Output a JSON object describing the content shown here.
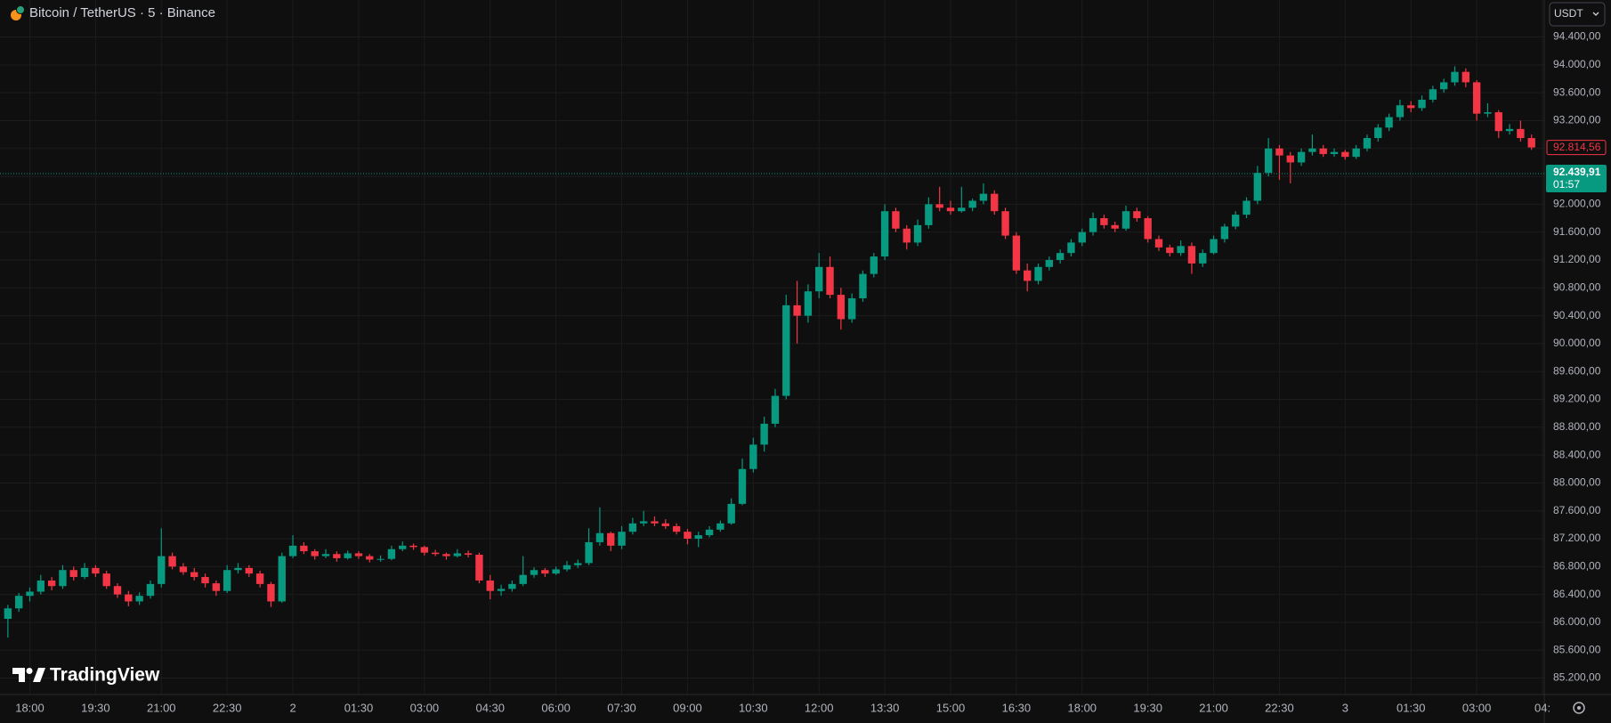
{
  "chart_data": {
    "type": "candlestick",
    "title": "Bitcoin / TetherUS · 5 · Binance",
    "currency": "USDT",
    "watermark": "TradingView",
    "up_color": "#089981",
    "down_color": "#f23645",
    "grid": true,
    "xlim": [
      -0.68,
      34.54
    ],
    "ylim": [
      84964,
      94931
    ],
    "xticks": [
      {
        "value": 0,
        "label": "18:00"
      },
      {
        "value": 1.5,
        "label": "19:30"
      },
      {
        "value": 3,
        "label": "21:00"
      },
      {
        "value": 4.5,
        "label": "22:30"
      },
      {
        "value": 6,
        "label": "2"
      },
      {
        "value": 7.5,
        "label": "01:30"
      },
      {
        "value": 9,
        "label": "03:00"
      },
      {
        "value": 10.5,
        "label": "04:30"
      },
      {
        "value": 12,
        "label": "06:00"
      },
      {
        "value": 13.5,
        "label": "07:30"
      },
      {
        "value": 15,
        "label": "09:00"
      },
      {
        "value": 16.5,
        "label": "10:30"
      },
      {
        "value": 18,
        "label": "12:00"
      },
      {
        "value": 19.5,
        "label": "13:30"
      },
      {
        "value": 21,
        "label": "15:00"
      },
      {
        "value": 22.5,
        "label": "16:30"
      },
      {
        "value": 24,
        "label": "18:00"
      },
      {
        "value": 25.5,
        "label": "19:30"
      },
      {
        "value": 27,
        "label": "21:00"
      },
      {
        "value": 28.5,
        "label": "22:30"
      },
      {
        "value": 30,
        "label": "3"
      },
      {
        "value": 31.5,
        "label": "01:30"
      },
      {
        "value": 33,
        "label": "03:00"
      },
      {
        "value": 34.5,
        "label": "04:"
      }
    ],
    "yticks": [
      {
        "value": 85200,
        "label": "85.200,00"
      },
      {
        "value": 85600,
        "label": "85.600,00"
      },
      {
        "value": 86000,
        "label": "86.000,00"
      },
      {
        "value": 86400,
        "label": "86.400,00"
      },
      {
        "value": 86800,
        "label": "86.800,00"
      },
      {
        "value": 87200,
        "label": "87.200,00"
      },
      {
        "value": 87600,
        "label": "87.600,00"
      },
      {
        "value": 88000,
        "label": "88.000,00"
      },
      {
        "value": 88400,
        "label": "88.400,00"
      },
      {
        "value": 88800,
        "label": "88.800,00"
      },
      {
        "value": 89200,
        "label": "89.200,00"
      },
      {
        "value": 89600,
        "label": "89.600,00"
      },
      {
        "value": 90000,
        "label": "90.000,00"
      },
      {
        "value": 90400,
        "label": "90.400,00"
      },
      {
        "value": 90800,
        "label": "90.800,00"
      },
      {
        "value": 91200,
        "label": "91.200,00"
      },
      {
        "value": 91600,
        "label": "91.600,00"
      },
      {
        "value": 92000,
        "label": "92.000,00"
      },
      {
        "value": 92400,
        "label": "92.400,00"
      },
      {
        "value": 92800,
        "label": "92.800,00"
      },
      {
        "value": 93200,
        "label": "93.200,00"
      },
      {
        "value": 93600,
        "label": "93.600,00"
      },
      {
        "value": 94000,
        "label": "94.000,00"
      },
      {
        "value": 94400,
        "label": "94.400,00"
      }
    ],
    "last_price": {
      "value": 92814.56,
      "label": "92.814,56"
    },
    "price_line": {
      "value": 92439.91,
      "label": "92.439,91",
      "countdown": "01:57"
    },
    "x": [
      -0.5,
      -0.25,
      0,
      0.25,
      0.5,
      0.75,
      1,
      1.25,
      1.5,
      1.75,
      2,
      2.25,
      2.5,
      2.75,
      3,
      3.25,
      3.5,
      3.75,
      4,
      4.25,
      4.5,
      4.75,
      5,
      5.25,
      5.5,
      5.75,
      6,
      6.25,
      6.5,
      6.75,
      7,
      7.25,
      7.5,
      7.75,
      8,
      8.25,
      8.5,
      8.75,
      9,
      9.25,
      9.5,
      9.75,
      10,
      10.25,
      10.5,
      10.75,
      11,
      11.25,
      11.5,
      11.75,
      12,
      12.25,
      12.5,
      12.75,
      13,
      13.25,
      13.5,
      13.75,
      14,
      14.25,
      14.5,
      14.75,
      15,
      15.25,
      15.5,
      15.75,
      16,
      16.25,
      16.5,
      16.75,
      17,
      17.25,
      17.5,
      17.75,
      18,
      18.25,
      18.5,
      18.75,
      19,
      19.25,
      19.5,
      19.75,
      20,
      20.25,
      20.5,
      20.75,
      21,
      21.25,
      21.5,
      21.75,
      22,
      22.25,
      22.5,
      22.75,
      23,
      23.25,
      23.5,
      23.75,
      24,
      24.25,
      24.5,
      24.75,
      25,
      25.25,
      25.5,
      25.75,
      26,
      26.25,
      26.5,
      26.75,
      27,
      27.25,
      27.5,
      27.75,
      28,
      28.25,
      28.5,
      28.75,
      29,
      29.25,
      29.5,
      29.75,
      30,
      30.25,
      30.5,
      30.75,
      31,
      31.25,
      31.5,
      31.75,
      32,
      32.25,
      32.5,
      32.75,
      33,
      33.25,
      33.5,
      33.75,
      34,
      34.25
    ],
    "candles": [
      [
        86050,
        86250,
        85780,
        86200
      ],
      [
        86200,
        86420,
        86150,
        86380
      ],
      [
        86380,
        86500,
        86300,
        86440
      ],
      [
        86440,
        86680,
        86400,
        86600
      ],
      [
        86600,
        86650,
        86460,
        86520
      ],
      [
        86520,
        86820,
        86480,
        86750
      ],
      [
        86750,
        86800,
        86600,
        86650
      ],
      [
        86650,
        86850,
        86620,
        86780
      ],
      [
        86780,
        86820,
        86650,
        86700
      ],
      [
        86700,
        86740,
        86480,
        86520
      ],
      [
        86520,
        86560,
        86350,
        86400
      ],
      [
        86400,
        86450,
        86230,
        86300
      ],
      [
        86300,
        86430,
        86250,
        86380
      ],
      [
        86380,
        86600,
        86340,
        86550
      ],
      [
        86550,
        87350,
        86500,
        86950
      ],
      [
        86950,
        87000,
        86760,
        86800
      ],
      [
        86800,
        86850,
        86680,
        86720
      ],
      [
        86720,
        86780,
        86600,
        86650
      ],
      [
        86650,
        86700,
        86500,
        86560
      ],
      [
        86560,
        86600,
        86380,
        86450
      ],
      [
        86450,
        86820,
        86420,
        86750
      ],
      [
        86750,
        86850,
        86700,
        86780
      ],
      [
        86780,
        86820,
        86650,
        86700
      ],
      [
        86700,
        86740,
        86500,
        86550
      ],
      [
        86550,
        86580,
        86220,
        86300
      ],
      [
        86300,
        87000,
        86280,
        86950
      ],
      [
        86950,
        87250,
        86920,
        87100
      ],
      [
        87100,
        87150,
        86980,
        87020
      ],
      [
        87020,
        87050,
        86900,
        86950
      ],
      [
        86950,
        87050,
        86920,
        86980
      ],
      [
        86980,
        87020,
        86870,
        86920
      ],
      [
        86920,
        87030,
        86900,
        86990
      ],
      [
        86990,
        87020,
        86910,
        86950
      ],
      [
        86950,
        86980,
        86860,
        86900
      ],
      [
        86900,
        86960,
        86870,
        86910
      ],
      [
        86910,
        87100,
        86890,
        87050
      ],
      [
        87050,
        87160,
        87020,
        87100
      ],
      [
        87100,
        87130,
        87040,
        87080
      ],
      [
        87080,
        87100,
        86960,
        87000
      ],
      [
        87000,
        87040,
        86950,
        86980
      ],
      [
        86980,
        87000,
        86900,
        86950
      ],
      [
        86950,
        87050,
        86930,
        86990
      ],
      [
        86990,
        87030,
        86930,
        86970
      ],
      [
        86970,
        87000,
        86560,
        86600
      ],
      [
        86600,
        86680,
        86330,
        86450
      ],
      [
        86450,
        86540,
        86380,
        86480
      ],
      [
        86480,
        86600,
        86440,
        86550
      ],
      [
        86550,
        86950,
        86520,
        86680
      ],
      [
        86680,
        86790,
        86640,
        86750
      ],
      [
        86750,
        86780,
        86650,
        86700
      ],
      [
        86700,
        86800,
        86680,
        86760
      ],
      [
        86760,
        86880,
        86730,
        86820
      ],
      [
        86820,
        86900,
        86780,
        86850
      ],
      [
        86850,
        87350,
        86820,
        87150
      ],
      [
        87150,
        87650,
        87100,
        87280
      ],
      [
        87280,
        87300,
        87020,
        87100
      ],
      [
        87100,
        87380,
        87050,
        87300
      ],
      [
        87300,
        87500,
        87260,
        87420
      ],
      [
        87420,
        87600,
        87380,
        87450
      ],
      [
        87450,
        87520,
        87380,
        87420
      ],
      [
        87420,
        87480,
        87340,
        87380
      ],
      [
        87380,
        87420,
        87260,
        87300
      ],
      [
        87300,
        87340,
        87120,
        87200
      ],
      [
        87200,
        87300,
        87080,
        87250
      ],
      [
        87250,
        87380,
        87220,
        87330
      ],
      [
        87330,
        87460,
        87300,
        87420
      ],
      [
        87420,
        87780,
        87400,
        87700
      ],
      [
        87700,
        88350,
        87680,
        88200
      ],
      [
        88200,
        88650,
        88150,
        88550
      ],
      [
        88550,
        88950,
        88450,
        88850
      ],
      [
        88850,
        89350,
        88800,
        89250
      ],
      [
        89250,
        90700,
        89200,
        90550
      ],
      [
        90550,
        90900,
        90000,
        90400
      ],
      [
        90400,
        90850,
        90300,
        90750
      ],
      [
        90750,
        91300,
        90650,
        91100
      ],
      [
        91100,
        91250,
        90650,
        90700
      ],
      [
        90700,
        90800,
        90200,
        90350
      ],
      [
        90350,
        90720,
        90300,
        90650
      ],
      [
        90650,
        91050,
        90600,
        91000
      ],
      [
        91000,
        91300,
        90950,
        91250
      ],
      [
        91250,
        92000,
        91200,
        91900
      ],
      [
        91900,
        91950,
        91600,
        91650
      ],
      [
        91650,
        91700,
        91350,
        91450
      ],
      [
        91450,
        91780,
        91400,
        91700
      ],
      [
        91700,
        92100,
        91650,
        92000
      ],
      [
        92000,
        92250,
        91900,
        91950
      ],
      [
        91950,
        92050,
        91850,
        91900
      ],
      [
        91900,
        92250,
        91880,
        91950
      ],
      [
        91950,
        92080,
        91900,
        92050
      ],
      [
        92050,
        92300,
        92000,
        92150
      ],
      [
        92150,
        92200,
        91850,
        91900
      ],
      [
        91900,
        91950,
        91500,
        91550
      ],
      [
        91550,
        91600,
        91000,
        91050
      ],
      [
        91050,
        91150,
        90750,
        90900
      ],
      [
        90900,
        91150,
        90850,
        91100
      ],
      [
        91100,
        91250,
        91050,
        91200
      ],
      [
        91200,
        91350,
        91150,
        91300
      ],
      [
        91300,
        91500,
        91250,
        91450
      ],
      [
        91450,
        91650,
        91400,
        91600
      ],
      [
        91600,
        91880,
        91550,
        91800
      ],
      [
        91800,
        91850,
        91650,
        91700
      ],
      [
        91700,
        91750,
        91600,
        91650
      ],
      [
        91650,
        91980,
        91620,
        91900
      ],
      [
        91900,
        91950,
        91750,
        91800
      ],
      [
        91800,
        91830,
        91450,
        91500
      ],
      [
        91500,
        91550,
        91330,
        91380
      ],
      [
        91380,
        91420,
        91250,
        91300
      ],
      [
        91300,
        91480,
        91260,
        91400
      ],
      [
        91400,
        91450,
        91000,
        91150
      ],
      [
        91150,
        91350,
        91100,
        91300
      ],
      [
        91300,
        91550,
        91280,
        91500
      ],
      [
        91500,
        91720,
        91450,
        91680
      ],
      [
        91680,
        91900,
        91640,
        91850
      ],
      [
        91850,
        92100,
        91800,
        92050
      ],
      [
        92050,
        92550,
        92000,
        92450
      ],
      [
        92450,
        92950,
        92400,
        92800
      ],
      [
        92800,
        92850,
        92350,
        92700
      ],
      [
        92700,
        92750,
        92300,
        92600
      ],
      [
        92600,
        92800,
        92550,
        92750
      ],
      [
        92750,
        93000,
        92700,
        92800
      ],
      [
        92800,
        92850,
        92680,
        92720
      ],
      [
        92720,
        92800,
        92680,
        92750
      ],
      [
        92750,
        92780,
        92640,
        92680
      ],
      [
        92680,
        92850,
        92650,
        92800
      ],
      [
        92800,
        93000,
        92760,
        92950
      ],
      [
        92950,
        93150,
        92900,
        93100
      ],
      [
        93100,
        93300,
        93050,
        93250
      ],
      [
        93250,
        93500,
        93200,
        93420
      ],
      [
        93420,
        93480,
        93320,
        93380
      ],
      [
        93380,
        93560,
        93340,
        93500
      ],
      [
        93500,
        93700,
        93460,
        93650
      ],
      [
        93650,
        93800,
        93600,
        93750
      ],
      [
        93750,
        93980,
        93700,
        93900
      ],
      [
        93900,
        93950,
        93680,
        93750
      ],
      [
        93750,
        93780,
        93200,
        93300
      ],
      [
        93300,
        93450,
        93250,
        93320
      ],
      [
        93320,
        93350,
        92950,
        93050
      ],
      [
        93050,
        93150,
        93000,
        93080
      ],
      [
        93080,
        93200,
        92900,
        92950
      ],
      [
        92950,
        93000,
        92780,
        92814.56
      ]
    ]
  }
}
